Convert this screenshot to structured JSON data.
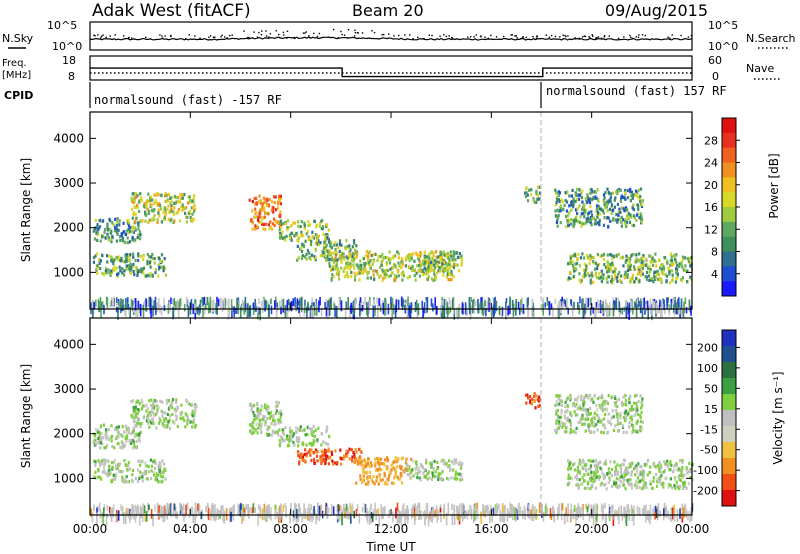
{
  "header": {
    "station": "Adak West (fitACF)",
    "beam": "Beam 20",
    "date": "09/Aug/2015"
  },
  "noise_panel": {
    "left_label": "N.Sky",
    "right_label": "N.Search",
    "left_ticks": [
      "10^5",
      "10^0"
    ],
    "right_ticks": [
      "10^5",
      "10^0"
    ]
  },
  "freq_panel": {
    "left_label_1": "Freq.",
    "left_label_2": "[MHz]",
    "right_label": "Nave",
    "left_ticks": [
      "18",
      "8"
    ],
    "right_ticks": [
      "60",
      "0"
    ]
  },
  "cpid_panel": {
    "label": "CPID",
    "left_text": "normalsound (fast) -157 RF",
    "right_text": "normalsound (fast) 157 RF"
  },
  "chart_data": [
    {
      "type": "heatmap",
      "name": "power",
      "ylabel": "Slant Range [km]",
      "yticks": [
        "1000",
        "2000",
        "3000",
        "4000"
      ],
      "ylim": [
        180,
        4590
      ],
      "xlim_hours": [
        0,
        24
      ],
      "colorbar_label": "Power [dB]",
      "colorbar_ticks": [
        "4",
        "8",
        "12",
        "16",
        "20",
        "24",
        "28"
      ],
      "colors": [
        "#1a1aff",
        "#1f4fd0",
        "#2f6f8f",
        "#3f8f5f",
        "#5fa85f",
        "#9fcc3f",
        "#d8d828",
        "#f0c020",
        "#f09020",
        "#f06020",
        "#e83020",
        "#e01010"
      ],
      "scatter_regions": [
        {
          "t0": 0.1,
          "t1": 2.0,
          "r0": 1700,
          "r1": 2250,
          "level": 0.35
        },
        {
          "t0": 1.6,
          "t1": 4.2,
          "r0": 2150,
          "r1": 2800,
          "level": 0.55
        },
        {
          "t0": 0.1,
          "t1": 3.0,
          "r0": 950,
          "r1": 1450,
          "level": 0.4
        },
        {
          "t0": 6.3,
          "t1": 7.6,
          "r0": 2000,
          "r1": 2750,
          "level": 0.8
        },
        {
          "t0": 7.5,
          "t1": 9.5,
          "r0": 1750,
          "r1": 2200,
          "level": 0.45
        },
        {
          "t0": 8.2,
          "t1": 10.6,
          "r0": 1300,
          "r1": 1750,
          "level": 0.4
        },
        {
          "t0": 9.5,
          "t1": 14.5,
          "r0": 850,
          "r1": 1500,
          "level": 0.55
        },
        {
          "t0": 13.0,
          "t1": 14.8,
          "r0": 1050,
          "r1": 1500,
          "level": 0.45
        },
        {
          "t0": 17.3,
          "t1": 17.9,
          "r0": 2600,
          "r1": 2950,
          "level": 0.4
        },
        {
          "t0": 18.5,
          "t1": 22.0,
          "r0": 2050,
          "r1": 2900,
          "level": 0.35
        },
        {
          "t0": 19.0,
          "t1": 24.0,
          "r0": 800,
          "r1": 1450,
          "level": 0.45
        }
      ]
    },
    {
      "type": "heatmap",
      "name": "velocity",
      "ylabel": "Slant Range [km]",
      "yticks": [
        "1000",
        "2000",
        "3000",
        "4000"
      ],
      "ylim": [
        180,
        4590
      ],
      "xlim_hours": [
        0,
        24
      ],
      "xticks": [
        "00:00",
        "04:00",
        "08:00",
        "12:00",
        "16:00",
        "20:00",
        "00:00"
      ],
      "xlabel": "Time UT",
      "colorbar_label": "Velocity [m s⁻¹]",
      "colorbar_ticks": [
        "200",
        "100",
        "50",
        "15",
        "-15",
        "-50",
        "-100",
        "-200"
      ],
      "colors": [
        "#2030c0",
        "#205090",
        "#2a7040",
        "#3aa040",
        "#7fd040",
        "#c0c0c0",
        "#d0d0c0",
        "#f0c040",
        "#f09020",
        "#f05018",
        "#e01010"
      ],
      "scatter_regions": [
        {
          "t0": 0.1,
          "t1": 2.0,
          "r0": 1700,
          "r1": 2250,
          "level": 0.5
        },
        {
          "t0": 1.6,
          "t1": 4.2,
          "r0": 2150,
          "r1": 2800,
          "level": 0.5
        },
        {
          "t0": 0.1,
          "t1": 3.0,
          "r0": 950,
          "r1": 1450,
          "level": 0.5
        },
        {
          "t0": 6.3,
          "t1": 7.6,
          "r0": 2000,
          "r1": 2750,
          "level": 0.6
        },
        {
          "t0": 7.5,
          "t1": 9.5,
          "r0": 1750,
          "r1": 2200,
          "level": 0.5
        },
        {
          "t0": 8.2,
          "t1": 10.8,
          "r0": 1350,
          "r1": 1700,
          "level": 0.95
        },
        {
          "t0": 10.5,
          "t1": 12.8,
          "r0": 900,
          "r1": 1500,
          "level": 0.75
        },
        {
          "t0": 12.5,
          "t1": 14.8,
          "r0": 1000,
          "r1": 1450,
          "level": 0.35
        },
        {
          "t0": 17.3,
          "t1": 17.9,
          "r0": 2600,
          "r1": 2950,
          "level": 0.9
        },
        {
          "t0": 18.5,
          "t1": 22.0,
          "r0": 2050,
          "r1": 2900,
          "level": 0.5
        },
        {
          "t0": 19.0,
          "t1": 24.0,
          "r0": 800,
          "r1": 1450,
          "level": 0.5
        }
      ]
    }
  ],
  "freq_series": [
    {
      "t0": 0,
      "t1": 10.05,
      "value": 13.5
    },
    {
      "t0": 10.05,
      "t1": 18.05,
      "value": 8.8
    },
    {
      "t0": 18.05,
      "t1": 24,
      "value": 13.5
    }
  ]
}
